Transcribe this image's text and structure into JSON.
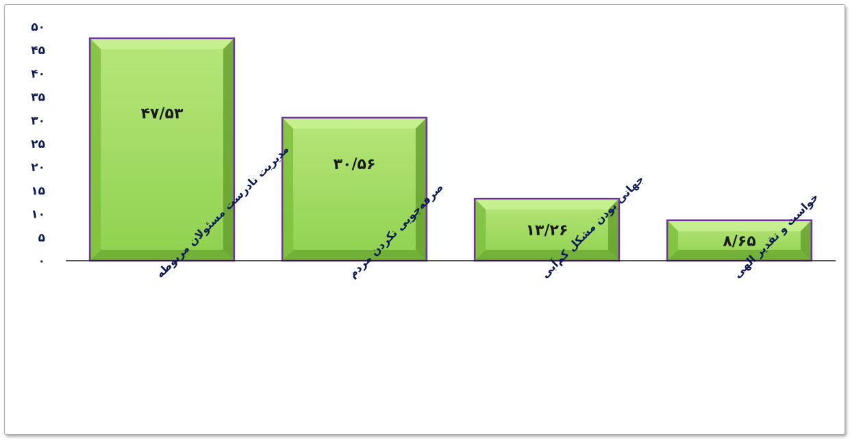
{
  "chart_data": {
    "type": "bar",
    "categories": [
      "مدیریت نادرست مسئولان مربوطه",
      "صرفه‌جویی نکردن مردم",
      "جهانی بودن مشکل کم‌آبی",
      "خواست و تقدیر الهی"
    ],
    "values": [
      47.53,
      30.56,
      13.26,
      8.65
    ],
    "data_labels": [
      "۴۷/۵۳",
      "۳۰/۵۶",
      "۱۳/۲۶",
      "۸/۶۵"
    ],
    "ylim": [
      0,
      50
    ],
    "yticks": [
      0,
      5,
      10,
      15,
      20,
      25,
      30,
      35,
      40,
      45,
      50
    ],
    "ytick_labels": [
      "۰",
      "۵",
      "۱۰",
      "۱۵",
      "۲۰",
      "۲۵",
      "۳۰",
      "۳۵",
      "۴۰",
      "۴۵",
      "۵۰"
    ],
    "title": "",
    "xlabel": "",
    "ylabel": "",
    "grid": false,
    "legend": "none",
    "colors": {
      "bar_fill": "#8fd14f",
      "bar_light": "#b7e67a",
      "bar_dark": "#5f9a2a",
      "bar_border": "#7030a0",
      "axis_text": "#0b1a55",
      "axis_line": "#1a1a1a"
    }
  }
}
